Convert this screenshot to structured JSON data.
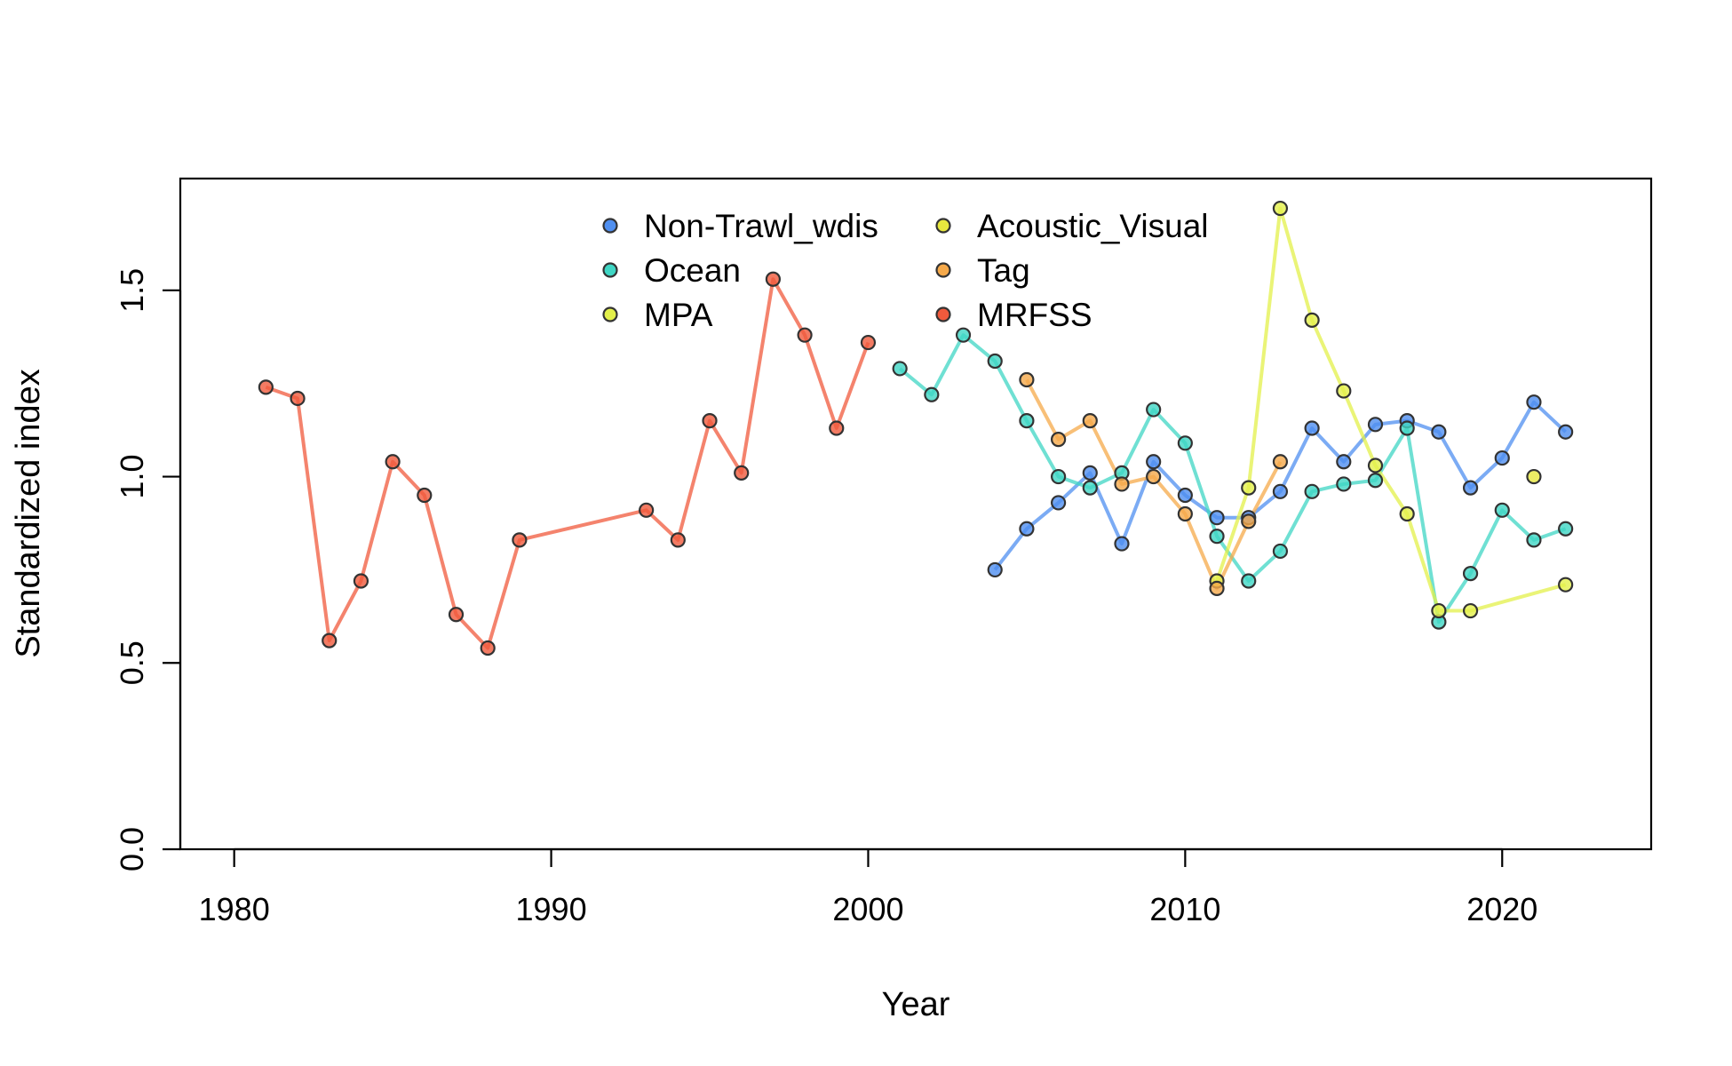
{
  "chart_data": {
    "type": "line",
    "title": "",
    "xlabel": "Year",
    "ylabel": "Standardized index",
    "xlim": [
      1978.3,
      2024.7
    ],
    "ylim": [
      0.0,
      1.8
    ],
    "x_ticks": [
      1980,
      1990,
      2000,
      2010,
      2020
    ],
    "y_ticks": [
      0.0,
      0.5,
      1.0,
      1.5
    ],
    "grid": false,
    "legend_position": "top-center",
    "series": [
      {
        "name": "Non-Trawl_wdis",
        "color": "#4f8ff0",
        "x": [
          2004,
          2005,
          2006,
          2007,
          2008,
          2009,
          2010,
          2011,
          2012,
          2013,
          2014,
          2015,
          2016,
          2017,
          2018,
          2019,
          2020,
          2021,
          2022
        ],
        "y": [
          0.75,
          0.86,
          0.93,
          1.01,
          0.82,
          1.04,
          0.95,
          0.89,
          0.89,
          0.96,
          1.13,
          1.04,
          1.14,
          1.15,
          1.12,
          0.97,
          1.05,
          1.2,
          1.12
        ]
      },
      {
        "name": "Ocean",
        "color": "#3fd6c4",
        "x": [
          2001,
          2002,
          2003,
          2004,
          2005,
          2006,
          2007,
          2008,
          2009,
          2010,
          2011,
          2012,
          2013,
          2014,
          2015,
          2016,
          2017,
          2018,
          2019,
          2020,
          2021,
          2022
        ],
        "y": [
          1.29,
          1.22,
          1.38,
          1.31,
          1.15,
          1.0,
          0.97,
          1.01,
          1.18,
          1.09,
          0.84,
          0.72,
          0.8,
          0.96,
          0.98,
          0.99,
          1.13,
          0.61,
          0.74,
          0.91,
          0.83,
          0.86
        ]
      },
      {
        "name": "MPA",
        "color": "#e3f04a",
        "x": [
          2011,
          2012,
          2013,
          2014,
          2015,
          2016,
          2017,
          2018,
          2019,
          2022
        ],
        "y": [
          0.72,
          0.97,
          1.72,
          1.42,
          1.23,
          1.03,
          0.9,
          0.64,
          0.64,
          0.71
        ]
      },
      {
        "name": "Acoustic_Visual",
        "color": "#e8e83e",
        "x": [
          2021
        ],
        "y": [
          1.0
        ]
      },
      {
        "name": "Tag",
        "color": "#f5a94a",
        "x": [
          2005,
          2006,
          2007,
          2008,
          2009,
          2010,
          2011,
          2012,
          2013
        ],
        "y": [
          1.26,
          1.1,
          1.15,
          0.98,
          1.0,
          0.9,
          0.7,
          0.88,
          1.04
        ]
      },
      {
        "name": "MRFSS",
        "color": "#f05a3c",
        "x": [
          1981,
          1982,
          1983,
          1984,
          1985,
          1986,
          1987,
          1988,
          1989,
          1993,
          1994,
          1995,
          1996,
          1997,
          1998,
          1999,
          2000
        ],
        "y": [
          1.24,
          1.21,
          0.56,
          0.72,
          1.04,
          0.95,
          0.63,
          0.54,
          0.83,
          0.91,
          0.83,
          1.15,
          1.01,
          1.53,
          1.38,
          1.13,
          1.36
        ]
      }
    ]
  }
}
